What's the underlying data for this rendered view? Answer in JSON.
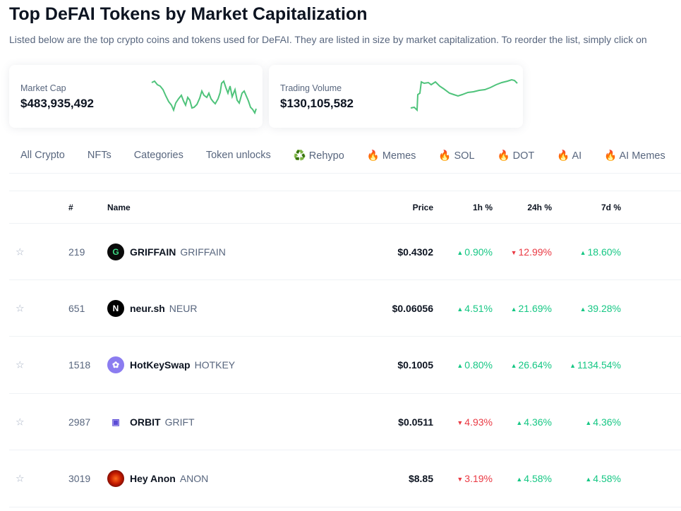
{
  "title": "Top DeFAI Tokens by Market Capitalization",
  "subtitle": "Listed below are the top crypto coins and tokens used for DeFAI. They are listed in size by market capitalization. To reorder the list, simply click on",
  "cards": [
    {
      "label": "Market Cap",
      "value": "$483,935,492"
    },
    {
      "label": "Trading Volume",
      "value": "$130,105,582"
    }
  ],
  "tabs": [
    "All Crypto",
    "NFTs",
    "Categories",
    "Token unlocks",
    "♻️ Rehypo",
    "🔥 Memes",
    "🔥 SOL",
    "🔥 DOT",
    "🔥 AI",
    "🔥 AI Memes"
  ],
  "headers": {
    "rank": "#",
    "name": "Name",
    "price": "Price",
    "h1": "1h %",
    "h24": "24h %",
    "d7": "7d %"
  },
  "colors": {
    "up": "#16c784",
    "down": "#ea3943"
  },
  "rows": [
    {
      "rank": "219",
      "name": "GRIFFAIN",
      "symbol": "GRIFFAIN",
      "price": "$0.4302",
      "h1": "0.90%",
      "h1_dir": "up",
      "h24": "12.99%",
      "h24_dir": "down",
      "d7": "18.60%",
      "d7_dir": "up"
    },
    {
      "rank": "651",
      "name": "neur.sh",
      "symbol": "NEUR",
      "price": "$0.06056",
      "h1": "4.51%",
      "h1_dir": "up",
      "h24": "21.69%",
      "h24_dir": "up",
      "d7": "39.28%",
      "d7_dir": "up"
    },
    {
      "rank": "1518",
      "name": "HotKeySwap",
      "symbol": "HOTKEY",
      "price": "$0.1005",
      "h1": "0.80%",
      "h1_dir": "up",
      "h24": "26.64%",
      "h24_dir": "up",
      "d7": "1134.54%",
      "d7_dir": "up"
    },
    {
      "rank": "2987",
      "name": "ORBIT",
      "symbol": "GRIFT",
      "price": "$0.0511",
      "h1": "4.93%",
      "h1_dir": "down",
      "h24": "4.36%",
      "h24_dir": "up",
      "d7": "4.36%",
      "d7_dir": "up"
    },
    {
      "rank": "3019",
      "name": "Hey Anon",
      "symbol": "ANON",
      "price": "$8.85",
      "h1": "3.19%",
      "h1_dir": "down",
      "h24": "4.58%",
      "h24_dir": "up",
      "d7": "4.58%",
      "d7_dir": "up"
    }
  ]
}
